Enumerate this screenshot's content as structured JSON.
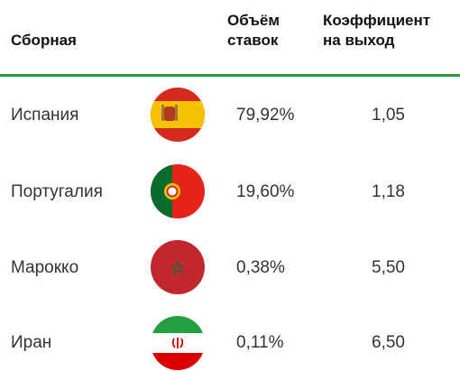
{
  "table": {
    "columns": [
      "Сборная",
      "Объём ставок",
      "Коэффициент на выход"
    ],
    "rows": [
      [
        "Испания",
        "79,92%",
        "1,05"
      ],
      [
        "Португалия",
        "19,60%",
        "1,18"
      ],
      [
        "Марокко",
        "0,38%",
        "5,50"
      ],
      [
        "Иран",
        "0,11%",
        "6,50"
      ]
    ]
  }
}
